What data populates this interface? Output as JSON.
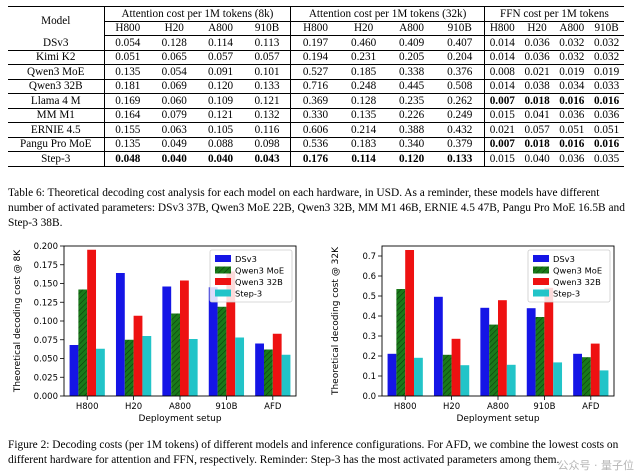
{
  "table": {
    "header": {
      "model": "Model",
      "groups": [
        "Attention cost per 1M tokens (8k)",
        "Attention cost per 1M tokens (32k)",
        "FFN cost per 1M tokens"
      ],
      "hardware": [
        "H800",
        "H20",
        "A800",
        "910B"
      ]
    },
    "rows": [
      {
        "model": "DSv3",
        "att8k": [
          "0.054",
          "0.128",
          "0.114",
          "0.113"
        ],
        "att32k": [
          "0.197",
          "0.460",
          "0.409",
          "0.407"
        ],
        "ffn": [
          "0.014",
          "0.036",
          "0.032",
          "0.032"
        ]
      },
      {
        "model": "Kimi K2",
        "att8k": [
          "0.051",
          "0.065",
          "0.057",
          "0.057"
        ],
        "att32k": [
          "0.194",
          "0.231",
          "0.205",
          "0.204"
        ],
        "ffn": [
          "0.014",
          "0.036",
          "0.032",
          "0.032"
        ]
      },
      {
        "model": "Qwen3 MoE",
        "att8k": [
          "0.135",
          "0.054",
          "0.091",
          "0.101"
        ],
        "att32k": [
          "0.527",
          "0.185",
          "0.338",
          "0.376"
        ],
        "ffn": [
          "0.008",
          "0.021",
          "0.019",
          "0.019"
        ]
      },
      {
        "model": "Qwen3 32B",
        "att8k": [
          "0.181",
          "0.069",
          "0.120",
          "0.133"
        ],
        "att32k": [
          "0.716",
          "0.248",
          "0.445",
          "0.508"
        ],
        "ffn": [
          "0.014",
          "0.038",
          "0.034",
          "0.033"
        ]
      },
      {
        "model": "Llama 4 M",
        "att8k": [
          "0.169",
          "0.060",
          "0.109",
          "0.121"
        ],
        "att32k": [
          "0.369",
          "0.128",
          "0.235",
          "0.262"
        ],
        "ffn": [
          "0.007",
          "0.018",
          "0.016",
          "0.016"
        ]
      },
      {
        "model": "MM M1",
        "att8k": [
          "0.164",
          "0.079",
          "0.121",
          "0.132"
        ],
        "att32k": [
          "0.330",
          "0.135",
          "0.226",
          "0.249"
        ],
        "ffn": [
          "0.015",
          "0.041",
          "0.036",
          "0.036"
        ]
      },
      {
        "model": "ERNIE 4.5",
        "att8k": [
          "0.155",
          "0.063",
          "0.105",
          "0.116"
        ],
        "att32k": [
          "0.606",
          "0.214",
          "0.388",
          "0.432"
        ],
        "ffn": [
          "0.021",
          "0.057",
          "0.051",
          "0.051"
        ]
      },
      {
        "model": "Pangu Pro MoE",
        "att8k": [
          "0.135",
          "0.049",
          "0.088",
          "0.098"
        ],
        "att32k": [
          "0.536",
          "0.183",
          "0.340",
          "0.379"
        ],
        "ffn": [
          "0.007",
          "0.018",
          "0.016",
          "0.016"
        ]
      },
      {
        "model": "Step-3",
        "att8k": [
          "0.048",
          "0.040",
          "0.040",
          "0.043"
        ],
        "att32k": [
          "0.176",
          "0.114",
          "0.120",
          "0.133"
        ],
        "ffn": [
          "0.015",
          "0.040",
          "0.036",
          "0.035"
        ]
      }
    ],
    "bold_rows": {
      "att8k": [
        8
      ],
      "att32k": [
        8
      ],
      "ffn": [
        4,
        7
      ]
    }
  },
  "table_caption": "Table 6: Theoretical decoding cost analysis for each model on each hardware, in USD. As a reminder, these models have different number of activated parameters: DSv3 37B, Qwen3 MoE 22B, Qwen3 32B, MM M1 46B, ERNIE 4.5 47B, Pangu Pro MoE 16.5B and Step-3 38B.",
  "figure_caption": "Figure 2: Decoding costs (per 1M tokens) of different models and inference configurations. For AFD, we combine the lowest costs on different hardware for attention and FFN, respectively. Reminder: Step-3 has the most activated parameters among them.",
  "watermark": "公众号 · 量子位",
  "colors": {
    "dsv3": "#1515e6",
    "qwen3moe": "#1a7a1a",
    "qwen3_32b": "#ee1111",
    "step3": "#22c4c8"
  },
  "chart_data": [
    {
      "type": "bar",
      "title": "",
      "xlabel": "Deployment setup",
      "ylabel": "Theoretical decoding cost @ 8K",
      "categories": [
        "H800",
        "H20",
        "A800",
        "910B",
        "AFD"
      ],
      "ylim": [
        0,
        0.2
      ],
      "yticks": [
        "0.000",
        "0.025",
        "0.050",
        "0.075",
        "0.100",
        "0.125",
        "0.150",
        "0.175",
        "0.200"
      ],
      "legend_position": "top-right",
      "series": [
        {
          "name": "DSv3",
          "values": [
            0.068,
            0.164,
            0.146,
            0.145,
            0.07
          ]
        },
        {
          "name": "Qwen3 MoE",
          "values": [
            0.142,
            0.075,
            0.11,
            0.119,
            0.062
          ]
        },
        {
          "name": "Qwen3 32B",
          "values": [
            0.195,
            0.107,
            0.154,
            0.166,
            0.083
          ]
        },
        {
          "name": "Step-3",
          "values": [
            0.063,
            0.08,
            0.076,
            0.078,
            0.055
          ]
        }
      ]
    },
    {
      "type": "bar",
      "title": "",
      "xlabel": "Deployment setup",
      "ylabel": "Theoretical decoding cost @ 32K",
      "categories": [
        "H800",
        "H20",
        "A800",
        "910B",
        "AFD"
      ],
      "ylim": [
        0,
        0.75
      ],
      "yticks": [
        "0.0",
        "0.1",
        "0.2",
        "0.3",
        "0.4",
        "0.5",
        "0.6",
        "0.7"
      ],
      "legend_position": "top-right",
      "series": [
        {
          "name": "DSv3",
          "values": [
            0.211,
            0.496,
            0.441,
            0.439,
            0.211
          ]
        },
        {
          "name": "Qwen3 MoE",
          "values": [
            0.535,
            0.206,
            0.357,
            0.395,
            0.194
          ]
        },
        {
          "name": "Qwen3 32B",
          "values": [
            0.73,
            0.286,
            0.479,
            0.541,
            0.262
          ]
        },
        {
          "name": "Step-3",
          "values": [
            0.191,
            0.154,
            0.156,
            0.168,
            0.128
          ]
        }
      ]
    }
  ]
}
